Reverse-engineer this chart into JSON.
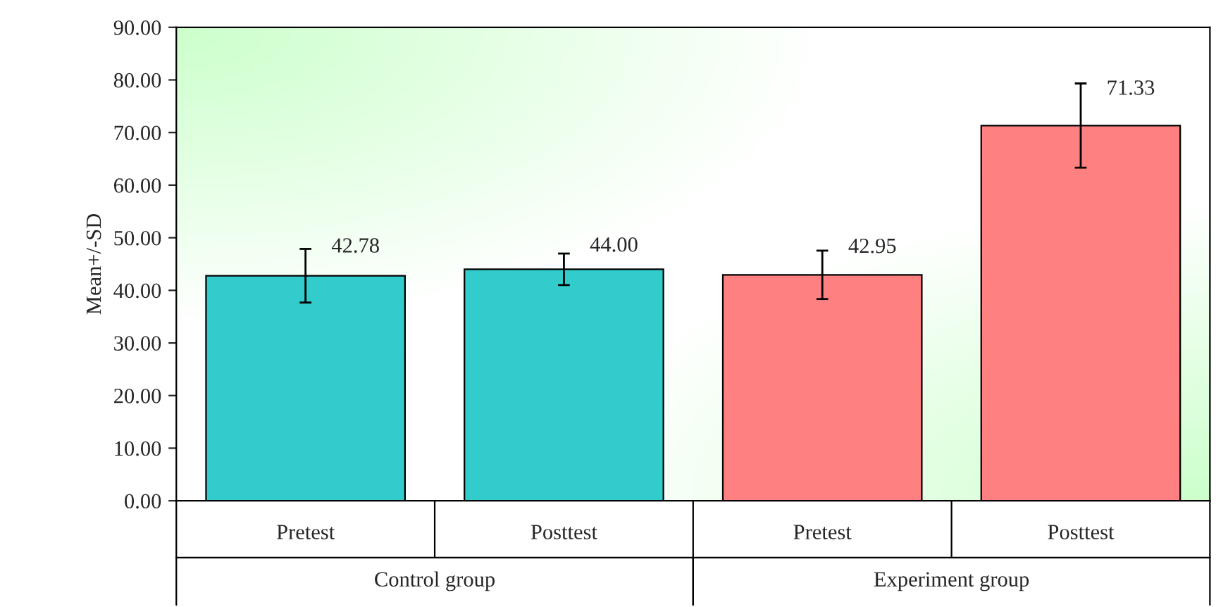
{
  "chart_data": {
    "type": "bar",
    "ylabel": "Mean+/-SD",
    "categories": [
      "Pretest",
      "Posttest",
      "Pretest",
      "Posttest"
    ],
    "values": [
      42.78,
      44.0,
      42.95,
      71.33
    ],
    "colors": [
      "#33cccc",
      "#33cccc",
      "#ff8080",
      "#ff8080"
    ],
    "errors": [
      5.1,
      3.0,
      4.6,
      8.0
    ],
    "value_labels": [
      "42.78",
      "44.00",
      "42.95",
      "71.33"
    ],
    "annotations": [
      "Control group",
      "Experiment group"
    ],
    "ylim": [
      0,
      90
    ],
    "yticks": [
      {
        "value": 0,
        "label": "0.00"
      },
      {
        "value": 10,
        "label": "10.00"
      },
      {
        "value": 20,
        "label": "20.00"
      },
      {
        "value": 30,
        "label": "30.00"
      },
      {
        "value": 40,
        "label": "40.00"
      },
      {
        "value": 50,
        "label": "50.00"
      },
      {
        "value": 60,
        "label": "60.00"
      },
      {
        "value": 70,
        "label": "70.00"
      },
      {
        "value": 80,
        "label": "80.00"
      },
      {
        "value": 90,
        "label": "90.00"
      }
    ],
    "grid": false,
    "legend": false
  }
}
